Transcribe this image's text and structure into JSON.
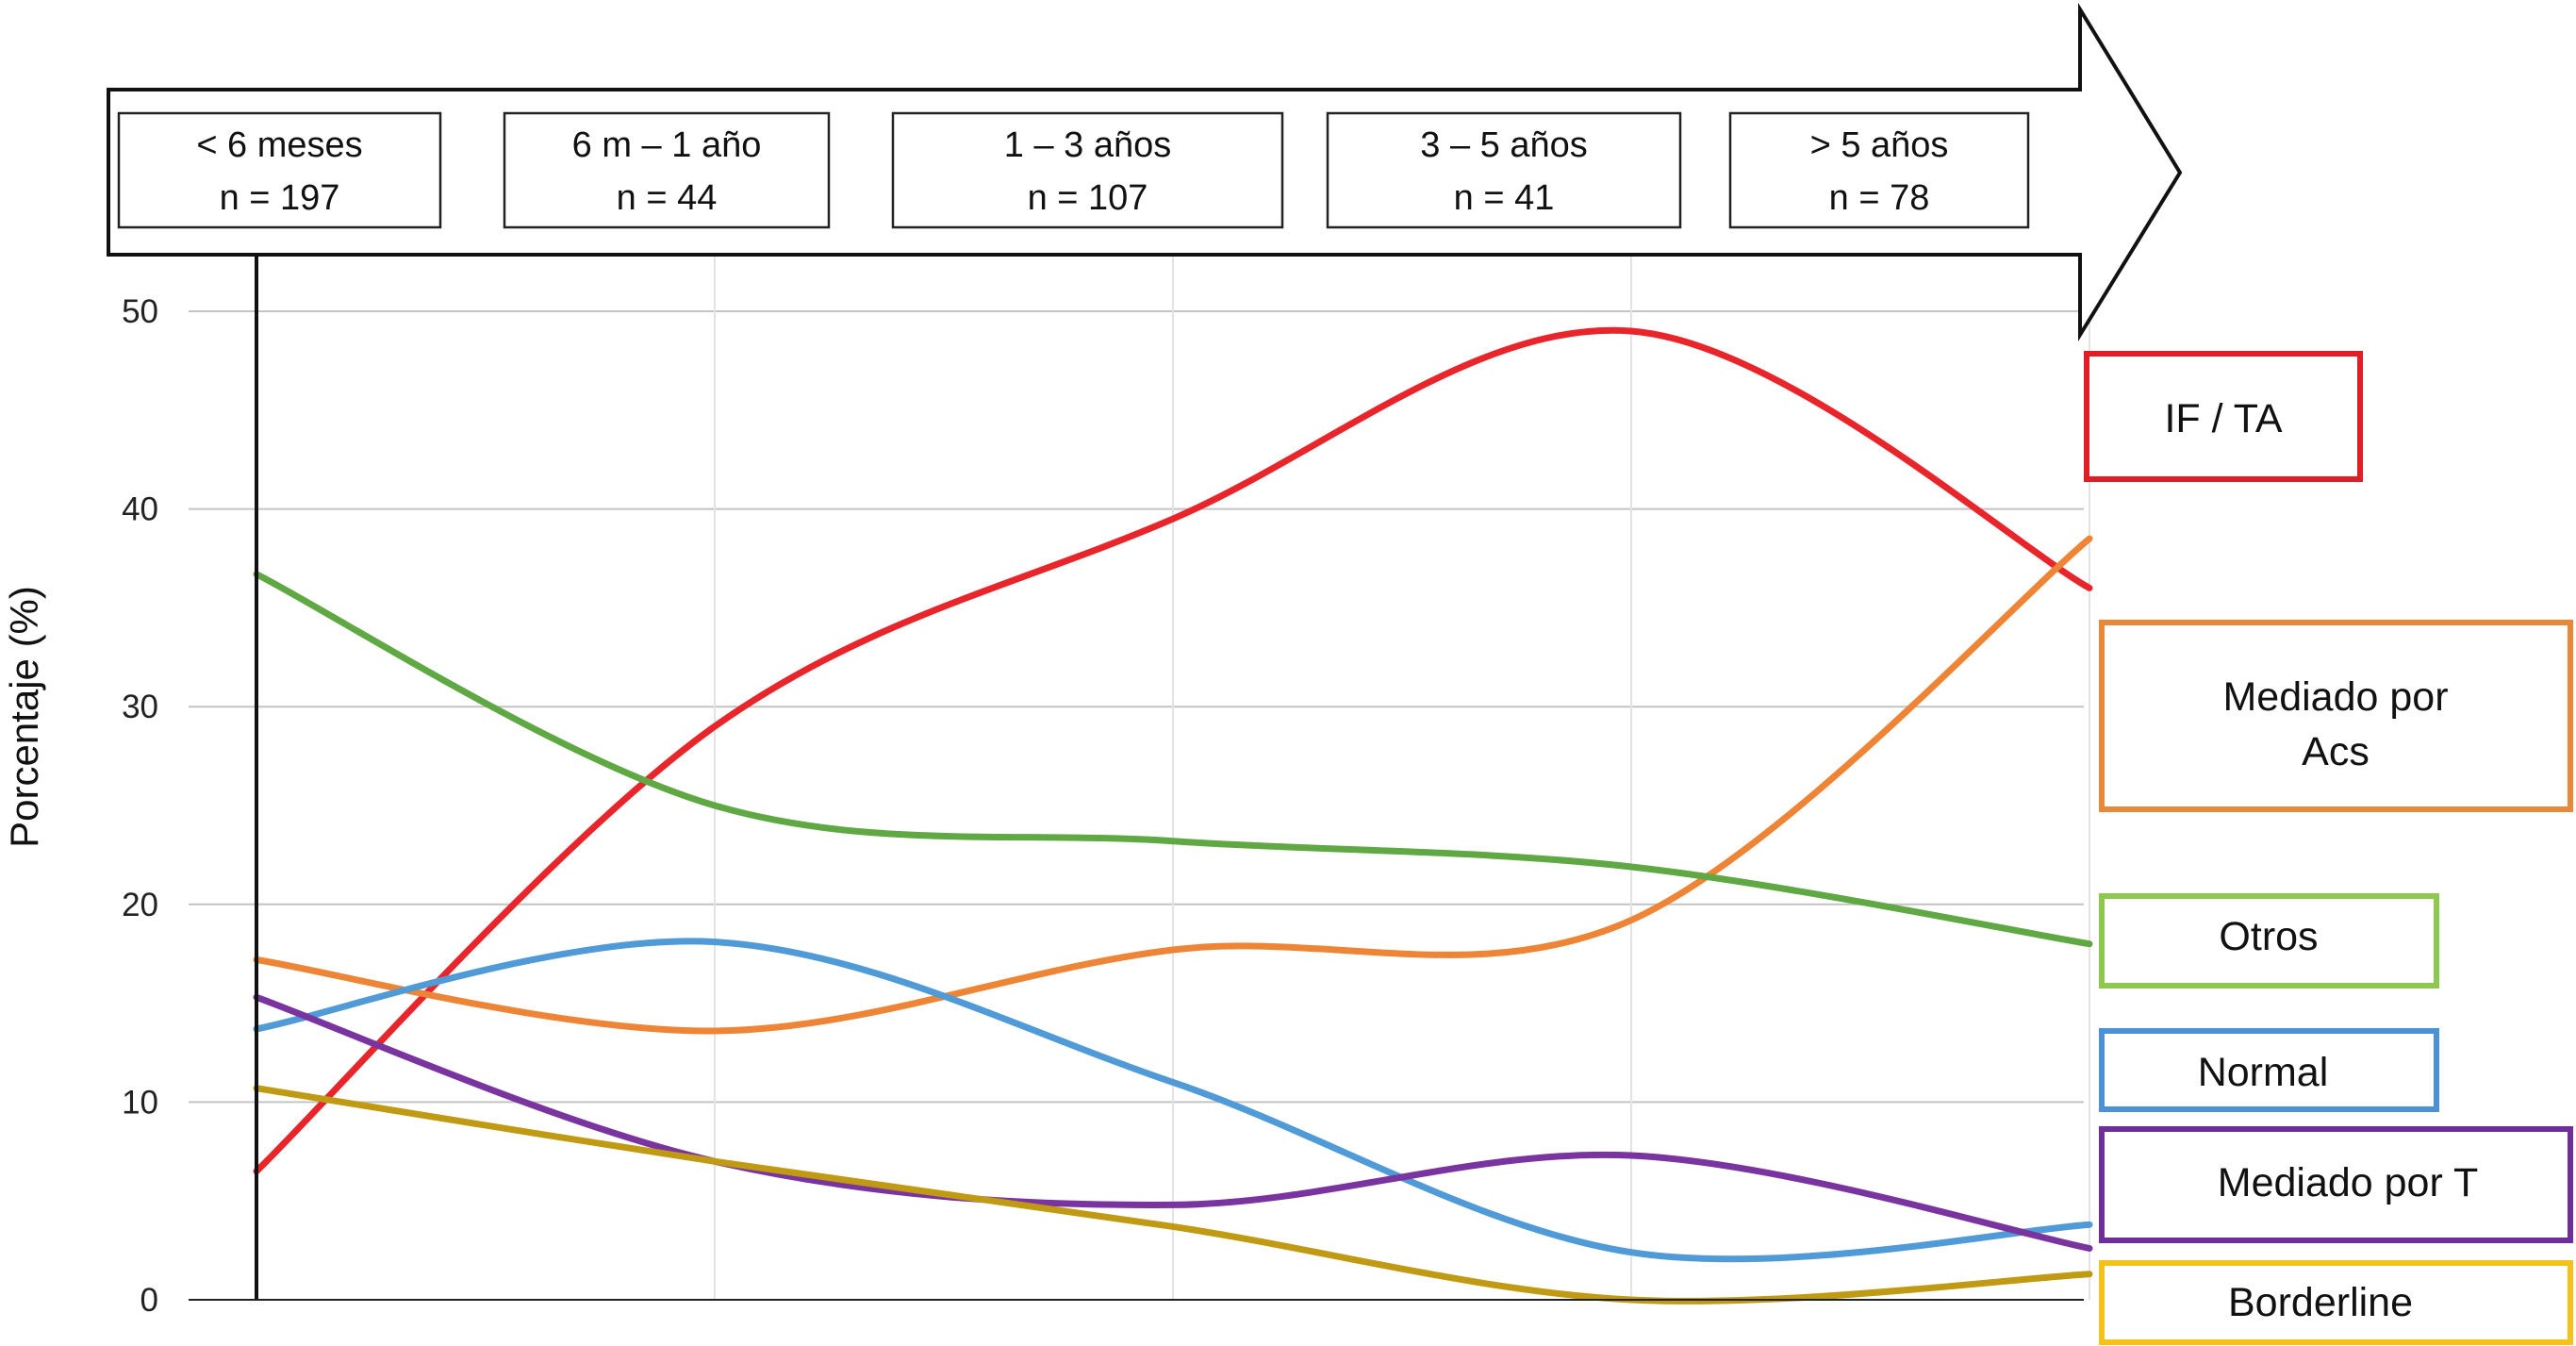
{
  "chart_data": {
    "type": "line",
    "title": "",
    "xlabel": "",
    "ylabel": "Porcentaje (%)",
    "ylim": [
      0,
      50
    ],
    "yticks": [
      "0",
      "10",
      "20",
      "30",
      "40",
      "50"
    ],
    "grid": true,
    "x": [
      0,
      1,
      2,
      3,
      4
    ],
    "categories": [
      {
        "label": "< 6 meses",
        "n": "n = 197"
      },
      {
        "label": "6 m – 1 año",
        "n": "n = 44"
      },
      {
        "label": "1 – 3 años",
        "n": "n = 107"
      },
      {
        "label": "3 – 5 años",
        "n": "n = 41"
      },
      {
        "label": "> 5 años",
        "n": "n = 78"
      }
    ],
    "series": [
      {
        "name": "IF / TA",
        "color": "#e8252a",
        "values": [
          6.5,
          29,
          39.5,
          49,
          36
        ]
      },
      {
        "name": "Mediado por Acs",
        "color": "#ee8536",
        "values": [
          17.2,
          13.6,
          17.7,
          19.2,
          38.5
        ]
      },
      {
        "name": "Otros",
        "color": "#5fa843",
        "values": [
          36.7,
          25,
          23.2,
          21.9,
          18
        ]
      },
      {
        "name": "Normal",
        "color": "#4f9ad7",
        "values": [
          13.7,
          18.1,
          11,
          2.4,
          3.8
        ]
      },
      {
        "name": "Mediado por T",
        "color": "#7a34a0",
        "values": [
          15.3,
          7,
          4.8,
          7.3,
          2.6
        ]
      },
      {
        "name": "Borderline",
        "color": "#c19a14",
        "values": [
          10.7,
          7,
          3.7,
          0,
          1.3
        ]
      }
    ],
    "legend": {
      "placement": "right",
      "entries": [
        {
          "lines": [
            "IF / TA"
          ],
          "border": "#e01e25"
        },
        {
          "lines": [
            "Mediado por",
            "Acs"
          ],
          "border": "#e8893a"
        },
        {
          "lines": [
            "Otros"
          ],
          "border": "#8dc84f"
        },
        {
          "lines": [
            "Normal"
          ],
          "border": "#4c90d6"
        },
        {
          "lines": [
            "Mediado por T"
          ],
          "border": "#6e2f9a"
        },
        {
          "lines": [
            "Borderline"
          ],
          "border": "#f4c21a"
        }
      ]
    }
  }
}
